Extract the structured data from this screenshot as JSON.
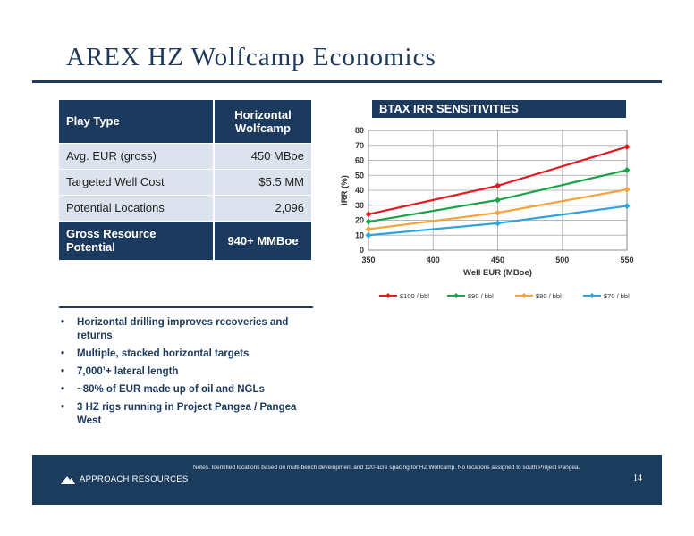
{
  "title": "AREX HZ Wolfcamp Economics",
  "table": {
    "header": {
      "label": "Play Type",
      "value": "Horizontal Wolfcamp"
    },
    "rows": [
      {
        "label": "Avg. EUR (gross)",
        "value": "450 MBoe"
      },
      {
        "label": "Targeted Well Cost",
        "value": "$5.5 MM"
      },
      {
        "label": "Potential Locations",
        "value": "2,096"
      }
    ],
    "footer": {
      "label": "Gross Resource Potential",
      "value": "940+ MMBoe"
    }
  },
  "chart_data": {
    "type": "line",
    "title": "BTAX IRR SENSITIVITIES",
    "xlabel": "Well EUR (MBoe)",
    "ylabel": "IRR (%)",
    "x": [
      350,
      450,
      550
    ],
    "xticks": [
      350,
      400,
      450,
      500,
      550
    ],
    "yticks": [
      0,
      10,
      20,
      30,
      40,
      50,
      60,
      70,
      80
    ],
    "xlim": [
      350,
      550
    ],
    "ylim": [
      0,
      80
    ],
    "grid": true,
    "legend": "bottom",
    "series": [
      {
        "name": "$100 / bbl",
        "color": "#e31b23",
        "values": [
          24,
          43,
          69
        ]
      },
      {
        "name": "$90 / bbl",
        "color": "#1aa34a",
        "values": [
          19,
          33.5,
          53.5
        ]
      },
      {
        "name": "$80 / bbl",
        "color": "#f7a23b",
        "values": [
          14,
          25,
          40.5
        ]
      },
      {
        "name": "$70 / bbl",
        "color": "#2ea3dc",
        "values": [
          10,
          18,
          29.5
        ]
      }
    ]
  },
  "bullets": [
    "Horizontal drilling improves recoveries and returns",
    "Multiple, stacked horizontal targets",
    "7,000’+ lateral length",
    "~80% of EUR made up of oil and NGLs",
    "3 HZ rigs running in Project Pangea / Pangea West"
  ],
  "bullet_glyph": "•",
  "footer": {
    "logo_text": "APPROACH RESOURCES",
    "notes": "Notes. Identified locations based on multi-bench development and 120-acre spacing for HZ Wolfcamp.  No locations assigned to south Project Pangea.",
    "page_number": "14"
  },
  "colors": {
    "navy": "#1c3a5e",
    "light_row": "#dde3ee"
  }
}
